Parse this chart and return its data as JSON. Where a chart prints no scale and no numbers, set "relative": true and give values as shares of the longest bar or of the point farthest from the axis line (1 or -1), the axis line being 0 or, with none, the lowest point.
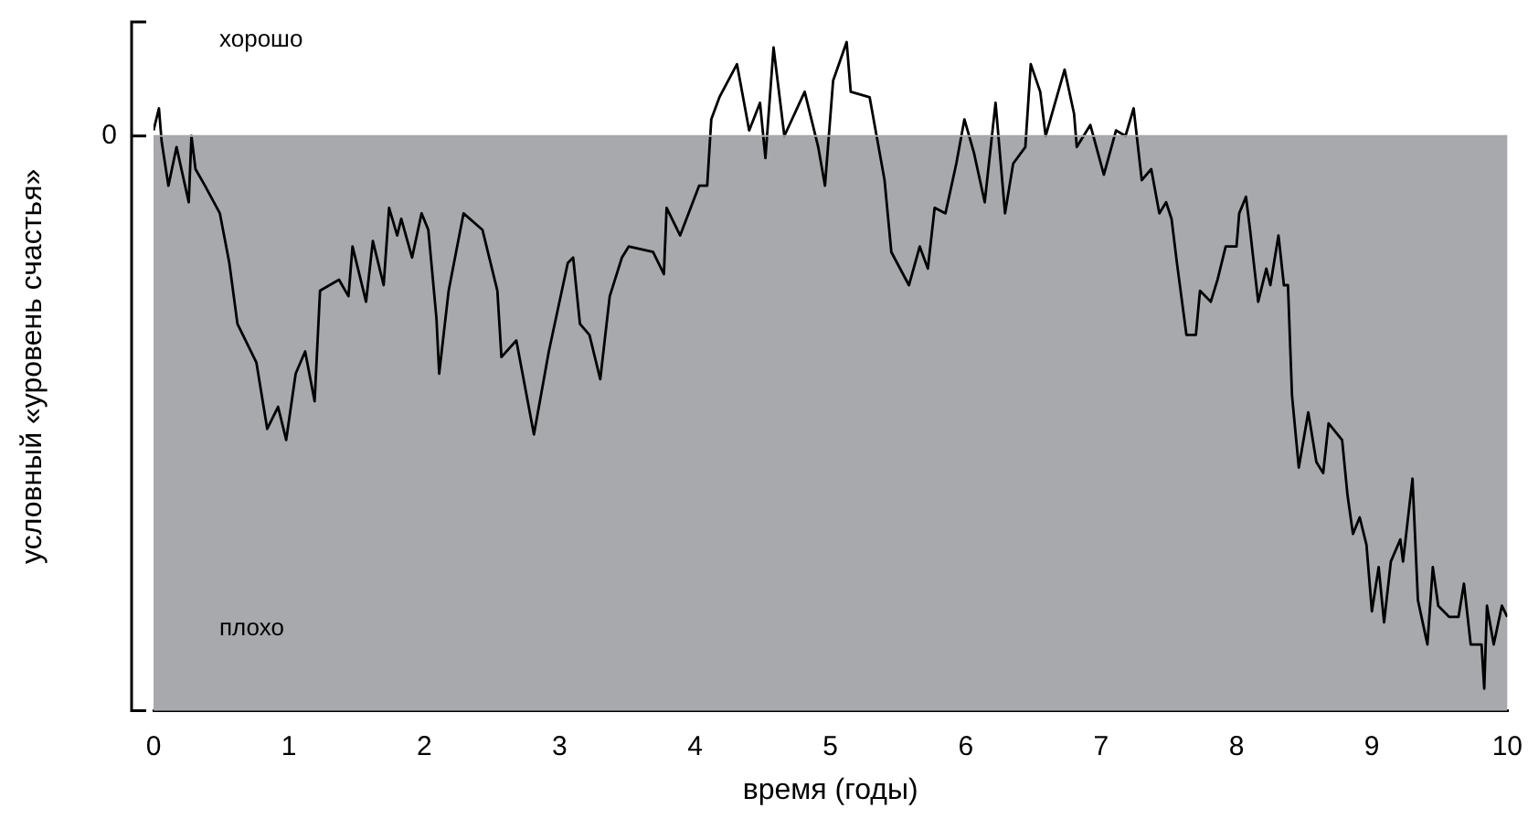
{
  "chart_data": {
    "type": "line",
    "relative": true,
    "xlabel": "время (годы)",
    "ylabel": "условный «уровень счастья»",
    "annotations": [
      "хорошо",
      "плохо"
    ],
    "xlim": [
      0,
      10
    ],
    "xticks": [
      0,
      1,
      2,
      3,
      4,
      5,
      6,
      7,
      8,
      9,
      10
    ],
    "ref_lines": [
      {
        "axis": "y",
        "value": 0,
        "label": "0",
        "color": "#a7a9ac"
      }
    ],
    "bands": [
      {
        "axis": "y",
        "from": 0,
        "to": -1.04,
        "color": "#a7a9ac"
      }
    ],
    "grid": false,
    "legend": false,
    "marker": "none",
    "line_style": "solid",
    "series": [
      {
        "color": "#000000",
        "x": [
          0,
          0.04,
          0.06,
          0.11,
          0.17,
          0.26,
          0.28,
          0.31,
          0.38,
          0.49,
          0.56,
          0.62,
          0.76,
          0.84,
          0.92,
          0.98,
          1.05,
          1.12,
          1.19,
          1.23,
          1.37,
          1.44,
          1.47,
          1.57,
          1.62,
          1.7,
          1.74,
          1.8,
          1.83,
          1.91,
          1.98,
          2.03,
          2.09,
          2.11,
          2.18,
          2.29,
          2.43,
          2.54,
          2.57,
          2.68,
          2.81,
          2.92,
          3.06,
          3.1,
          3.15,
          3.22,
          3.3,
          3.37,
          3.46,
          3.51,
          3.69,
          3.77,
          3.79,
          3.89,
          4.03,
          4.09,
          4.12,
          4.18,
          4.31,
          4.4,
          4.48,
          4.52,
          4.58,
          4.66,
          4.81,
          4.91,
          4.96,
          5.02,
          5.12,
          5.15,
          5.29,
          5.4,
          5.45,
          5.58,
          5.66,
          5.72,
          5.77,
          5.85,
          5.93,
          5.99,
          6.06,
          6.14,
          6.22,
          6.29,
          6.35,
          6.44,
          6.48,
          6.55,
          6.59,
          6.66,
          6.73,
          6.8,
          6.82,
          6.92,
          7.02,
          7.11,
          7.18,
          7.24,
          7.3,
          7.37,
          7.43,
          7.48,
          7.52,
          7.56,
          7.63,
          7.7,
          7.73,
          7.81,
          7.86,
          7.92,
          8,
          8.02,
          8.07,
          8.1,
          8.16,
          8.22,
          8.25,
          8.31,
          8.35,
          8.38,
          8.41,
          8.46,
          8.53,
          8.59,
          8.64,
          8.68,
          8.78,
          8.82,
          8.86,
          8.91,
          8.96,
          9,
          9.05,
          9.09,
          9.14,
          9.21,
          9.23,
          9.3,
          9.34,
          9.41,
          9.45,
          9.49,
          9.57,
          9.64,
          9.68,
          9.73,
          9.81,
          9.83,
          9.85,
          9.9,
          9.96,
          10
        ],
        "values": [
          0.01,
          0.05,
          -0.01,
          -0.09,
          -0.02,
          -0.12,
          0,
          -0.06,
          -0.09,
          -0.14,
          -0.23,
          -0.34,
          -0.41,
          -0.53,
          -0.49,
          -0.55,
          -0.43,
          -0.39,
          -0.48,
          -0.28,
          -0.26,
          -0.29,
          -0.2,
          -0.3,
          -0.19,
          -0.27,
          -0.13,
          -0.18,
          -0.15,
          -0.22,
          -0.14,
          -0.17,
          -0.33,
          -0.43,
          -0.28,
          -0.14,
          -0.17,
          -0.28,
          -0.4,
          -0.37,
          -0.54,
          -0.39,
          -0.23,
          -0.22,
          -0.34,
          -0.36,
          -0.44,
          -0.29,
          -0.22,
          -0.2,
          -0.21,
          -0.25,
          -0.13,
          -0.18,
          -0.09,
          -0.09,
          0.03,
          0.07,
          0.13,
          0.01,
          0.06,
          -0.04,
          0.16,
          0,
          0.08,
          -0.02,
          -0.09,
          0.1,
          0.17,
          0.08,
          0.07,
          -0.08,
          -0.21,
          -0.27,
          -0.2,
          -0.24,
          -0.13,
          -0.14,
          -0.05,
          0.03,
          -0.03,
          -0.12,
          0.06,
          -0.14,
          -0.05,
          -0.02,
          0.13,
          0.08,
          0,
          0.06,
          0.12,
          0.04,
          -0.02,
          0.02,
          -0.07,
          0.01,
          0,
          0.05,
          -0.08,
          -0.06,
          -0.14,
          -0.12,
          -0.15,
          -0.23,
          -0.36,
          -0.36,
          -0.28,
          -0.3,
          -0.26,
          -0.2,
          -0.2,
          -0.14,
          -0.11,
          -0.17,
          -0.3,
          -0.24,
          -0.27,
          -0.18,
          -0.27,
          -0.27,
          -0.47,
          -0.6,
          -0.5,
          -0.59,
          -0.61,
          -0.52,
          -0.55,
          -0.65,
          -0.72,
          -0.69,
          -0.74,
          -0.86,
          -0.78,
          -0.88,
          -0.77,
          -0.73,
          -0.77,
          -0.62,
          -0.84,
          -0.92,
          -0.78,
          -0.85,
          -0.87,
          -0.87,
          -0.81,
          -0.92,
          -0.92,
          -1,
          -0.85,
          -0.92,
          -0.85,
          -0.87
        ]
      }
    ]
  }
}
